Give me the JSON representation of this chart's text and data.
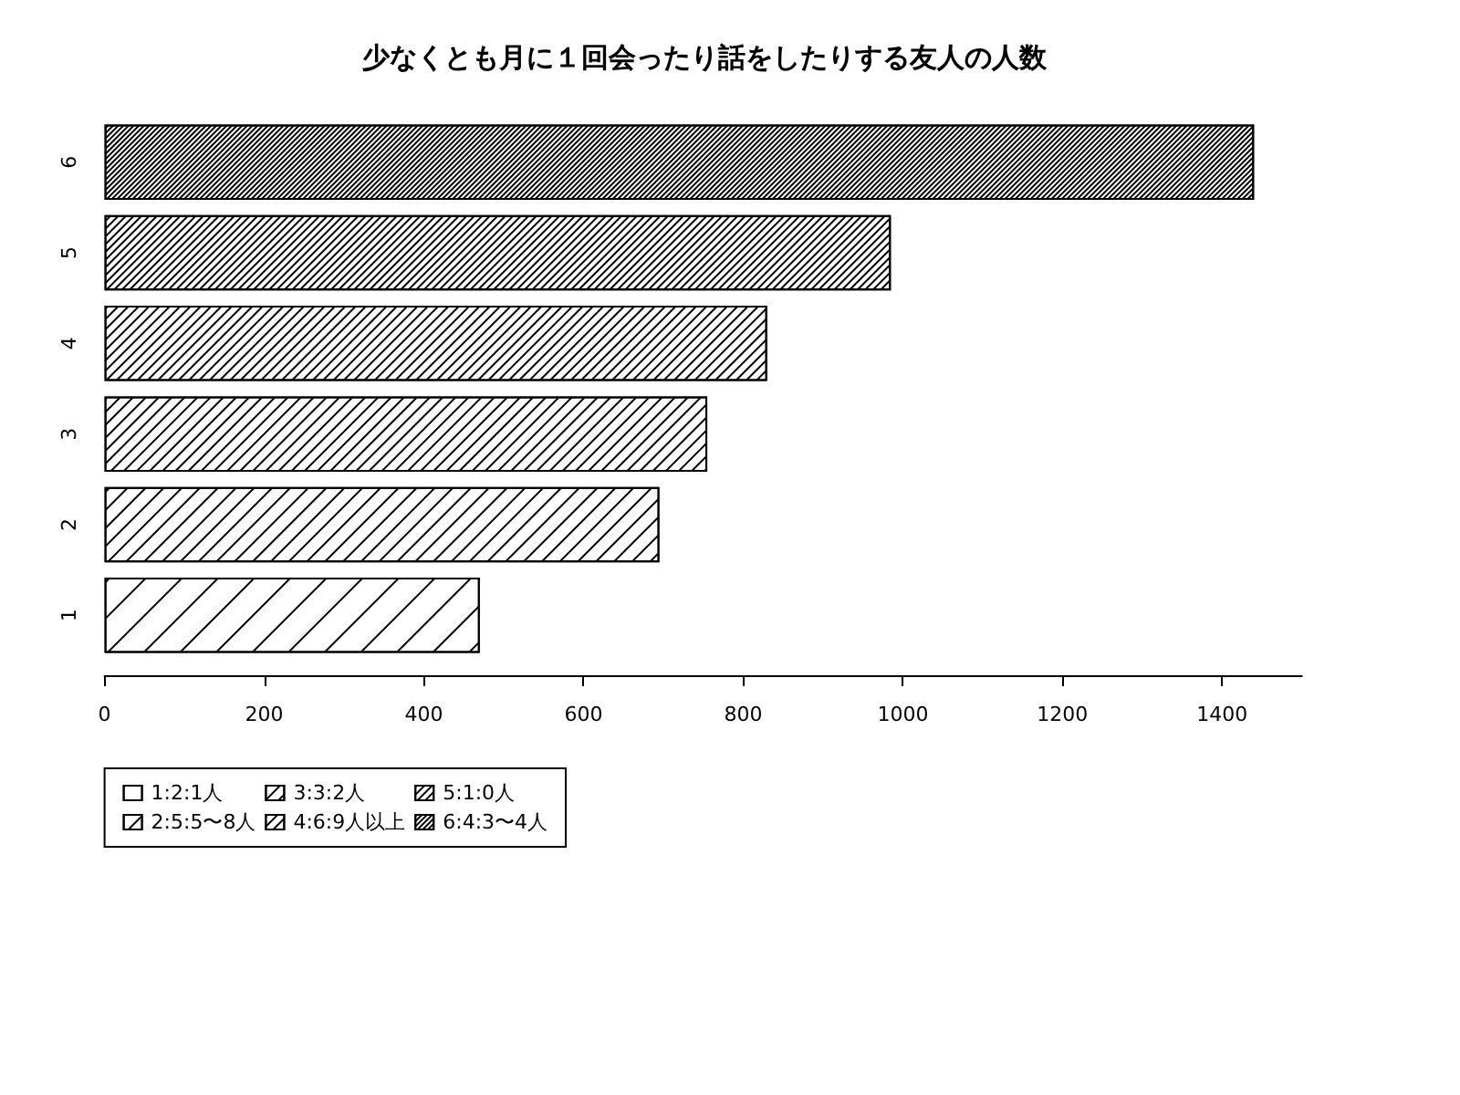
{
  "chart_data": {
    "type": "bar",
    "orientation": "horizontal",
    "title": "少なくとも月に１回会ったり話をしたりする友人の人数",
    "categories": [
      "6",
      "5",
      "4",
      "3",
      "2",
      "1"
    ],
    "series": [
      {
        "name": "1:2:1人",
        "color": "#000000",
        "values": [
          null,
          null,
          null,
          null,
          null,
          470
        ]
      },
      {
        "name": "2:5:5〜8人",
        "color": "#000000",
        "values": [
          null,
          null,
          null,
          null,
          695,
          null
        ]
      },
      {
        "name": "3:3:2人",
        "color": "#000000",
        "values": [
          null,
          null,
          null,
          755,
          null,
          null
        ]
      },
      {
        "name": "4:6:9人以上",
        "color": "#000000",
        "values": [
          null,
          null,
          830,
          null,
          null,
          null
        ]
      },
      {
        "name": "5:1:0人",
        "color": "#000000",
        "values": [
          null,
          985,
          null,
          null,
          null,
          null
        ]
      },
      {
        "name": "6:4:3〜4人",
        "color": "#000000",
        "values": [
          1440,
          null,
          null,
          null,
          null,
          null
        ]
      }
    ],
    "xlim": [
      0,
      1500
    ],
    "xticks": [
      0,
      200,
      400,
      600,
      800,
      1000,
      1200,
      1400
    ],
    "legend": "bottom left"
  }
}
